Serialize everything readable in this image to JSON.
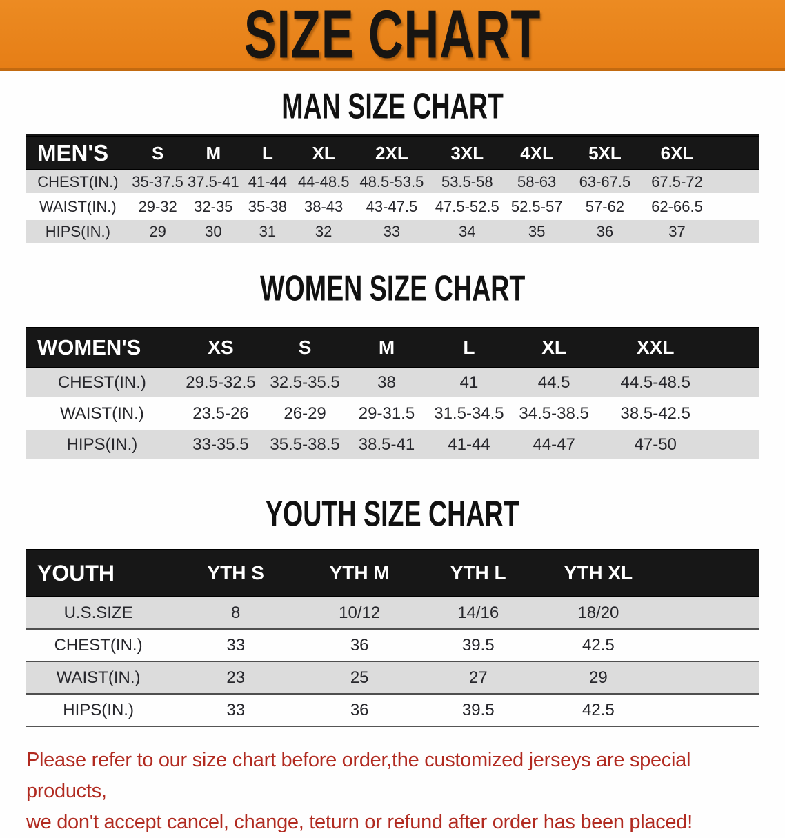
{
  "banner": {
    "title": "SIZE CHART",
    "background": "#e8831e",
    "edge": "#c26a10"
  },
  "colors": {
    "header_bar": "#171717",
    "stripe_gray": "#dcdcdc",
    "disclaimer_red": "#b12a20"
  },
  "sections": [
    {
      "id": "men",
      "heading": "MAN SIZE CHART",
      "corner_label": "MEN'S",
      "columns": [
        "S",
        "M",
        "L",
        "XL",
        "2XL",
        "3XL",
        "4XL",
        "5XL",
        "6XL"
      ],
      "rows": [
        {
          "label": "CHEST(IN.)",
          "values": [
            "35-37.5",
            "37.5-41",
            "41-44",
            "44-48.5",
            "48.5-53.5",
            "53.5-58",
            "58-63",
            "63-67.5",
            "67.5-72"
          ]
        },
        {
          "label": "WAIST(IN.)",
          "values": [
            "29-32",
            "32-35",
            "35-38",
            "38-43",
            "43-47.5",
            "47.5-52.5",
            "52.5-57",
            "57-62",
            "62-66.5"
          ]
        },
        {
          "label": "HIPS(IN.)",
          "values": [
            "29",
            "30",
            "31",
            "32",
            "33",
            "34",
            "35",
            "36",
            "37"
          ]
        }
      ]
    },
    {
      "id": "women",
      "heading": "WOMEN SIZE CHART",
      "corner_label": "WOMEN'S",
      "columns": [
        "XS",
        "S",
        "M",
        "L",
        "XL",
        "XXL"
      ],
      "rows": [
        {
          "label": "CHEST(IN.)",
          "values": [
            "29.5-32.5",
            "32.5-35.5",
            "38",
            "41",
            "44.5",
            "44.5-48.5"
          ]
        },
        {
          "label": "WAIST(IN.)",
          "values": [
            "23.5-26",
            "26-29",
            "29-31.5",
            "31.5-34.5",
            "34.5-38.5",
            "38.5-42.5"
          ]
        },
        {
          "label": "HIPS(IN.)",
          "values": [
            "33-35.5",
            "35.5-38.5",
            "38.5-41",
            "41-44",
            "44-47",
            "47-50"
          ]
        }
      ]
    },
    {
      "id": "youth",
      "heading": "YOUTH SIZE CHART",
      "corner_label": "YOUTH",
      "columns": [
        "YTH S",
        "YTH M",
        "YTH L",
        "YTH XL"
      ],
      "rows": [
        {
          "label": "U.S.SIZE",
          "values": [
            "8",
            "10/12",
            "14/16",
            "18/20"
          ]
        },
        {
          "label": "CHEST(IN.)",
          "values": [
            "33",
            "36",
            "39.5",
            "42.5"
          ]
        },
        {
          "label": "WAIST(IN.)",
          "values": [
            "23",
            "25",
            "27",
            "29"
          ]
        },
        {
          "label": "HIPS(IN.)",
          "values": [
            "33",
            "36",
            "39.5",
            "42.5"
          ]
        }
      ]
    }
  ],
  "disclaimer": {
    "line1": "Please refer to our size chart before order,the customized jerseys are special products,",
    "line2": "we don't accept cancel, change, teturn or refund after order has been placed!"
  }
}
